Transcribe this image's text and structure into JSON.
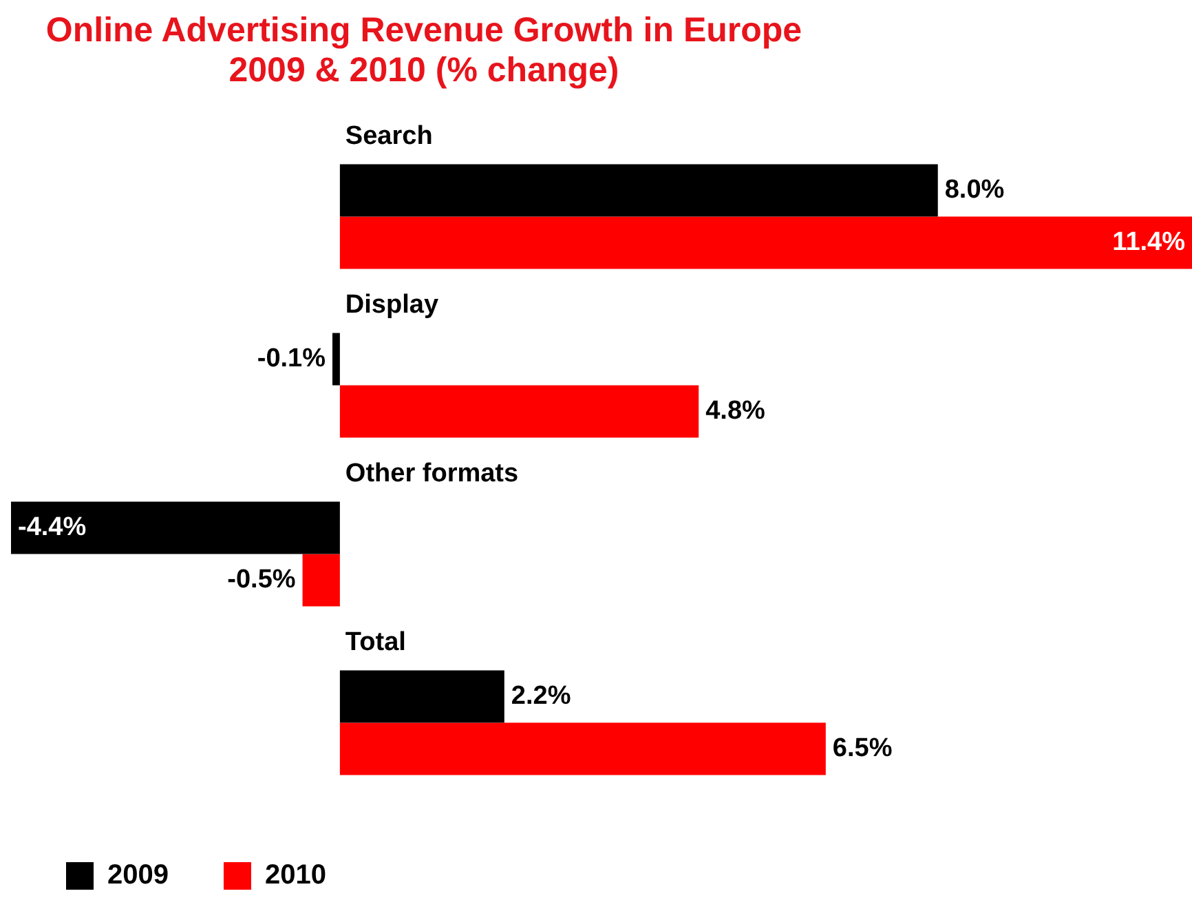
{
  "chart_data": {
    "type": "bar",
    "orientation": "horizontal",
    "title": "Online Advertising Revenue Growth in Europe 2009 & 2010 (% change)",
    "categories": [
      "Search",
      "Display",
      "Other formats",
      "Total"
    ],
    "series": [
      {
        "name": "2009",
        "color": "#000000",
        "values": [
          8.0,
          -0.1,
          -4.4,
          2.2
        ],
        "value_labels": [
          "8.0%",
          "-0.1%",
          "-4.4%",
          "2.2%"
        ]
      },
      {
        "name": "2010",
        "color": "#ff0000",
        "values": [
          11.4,
          4.8,
          -0.5,
          6.5
        ],
        "value_labels": [
          "11.4%",
          "4.8%",
          "-0.5%",
          "6.5%"
        ]
      }
    ],
    "legend": "bottom"
  }
}
